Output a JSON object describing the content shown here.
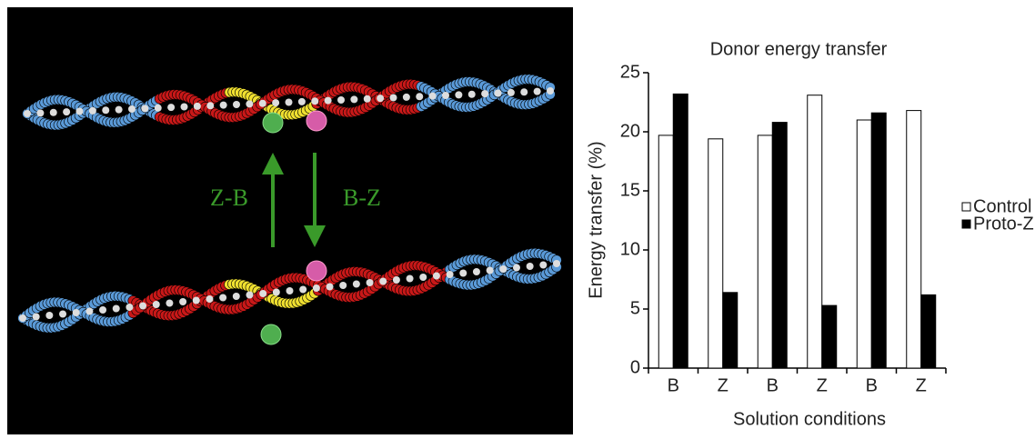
{
  "illustration": {
    "labels": [
      "Z-B",
      "B-Z"
    ]
  },
  "chart_data": {
    "type": "bar",
    "title": "Donor energy transfer",
    "xlabel": "Solution conditions",
    "ylabel": "Energy transfer (%)",
    "categories": [
      "B",
      "Z",
      "B",
      "Z",
      "B",
      "Z"
    ],
    "series": [
      {
        "name": "Control",
        "color": "#ffffff",
        "values": [
          19.7,
          19.4,
          19.7,
          23.1,
          21.0,
          21.8
        ]
      },
      {
        "name": "Proto-Z",
        "color": "#000000",
        "values": [
          23.2,
          6.4,
          20.8,
          5.3,
          21.6,
          6.2
        ]
      }
    ],
    "edgecolor": "#000000",
    "ylim": [
      0,
      25
    ],
    "yticks": [
      0,
      5,
      10,
      15,
      20,
      25
    ],
    "grid": false,
    "legend": "right"
  }
}
